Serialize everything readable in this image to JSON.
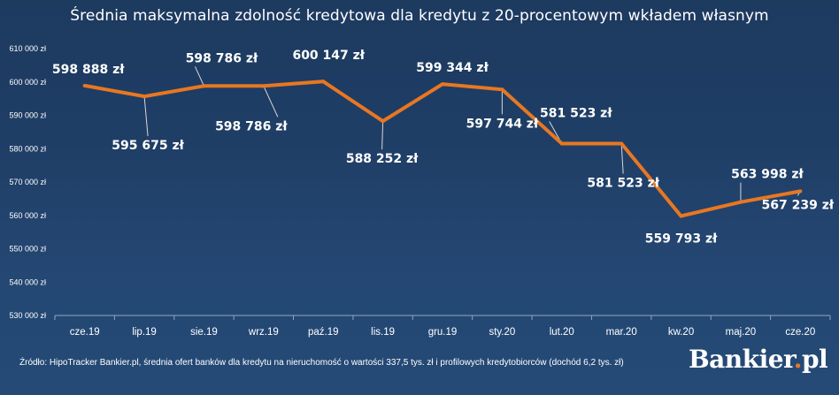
{
  "chart_data": {
    "type": "line",
    "title": "Średnia maksymalna zdolność kredytowa dla kredytu z 20-procentowym wkładem własnym",
    "xlabel": "",
    "ylabel": "",
    "categories": [
      "cze.19",
      "lip.19",
      "sie.19",
      "wrz.19",
      "paź.19",
      "lis.19",
      "gru.19",
      "sty.20",
      "lut.20",
      "mar.20",
      "kw.20",
      "maj.20",
      "cze.20"
    ],
    "series": [
      {
        "values": [
          598888,
          595675,
          598786,
          598786,
          600147,
          588252,
          599344,
          597744,
          581523,
          581523,
          559793,
          563998,
          567239
        ]
      }
    ],
    "data_labels": [
      "598 888 zł",
      "595 675 zł",
      "598 786 zł",
      "598 786 zł",
      "600 147 zł",
      "588 252 zł",
      "599 344 zł",
      "597 744 zł",
      "581 523 zł",
      "581 523 zł",
      "559 793 zł",
      "563 998 zł",
      "567 239 zł"
    ],
    "ylim": [
      530000,
      610000
    ],
    "yticks": [
      530000,
      540000,
      550000,
      560000,
      570000,
      580000,
      590000,
      600000,
      610000
    ],
    "ytick_labels": [
      "530 000 zł",
      "540 000 zł",
      "550 000 zł",
      "560 000 zł",
      "570 000 zł",
      "580 000 zł",
      "590 000 zł",
      "600 000 zł",
      "610 000 zł"
    ],
    "grid": false,
    "legend": "none",
    "line_color": "#e87722",
    "background_color": "#1f3e66"
  },
  "footer": {
    "source": "Źródło: HipoTracker Bankier.pl, średnia ofert banków dla kredytu na nieruchomość o wartości 337,5 tys. zł i profilowych kredytobiorców (dochód 6,2 tys. zł)"
  },
  "logo": {
    "text": "Bankier",
    "dot": ".",
    "suffix": "pl"
  }
}
